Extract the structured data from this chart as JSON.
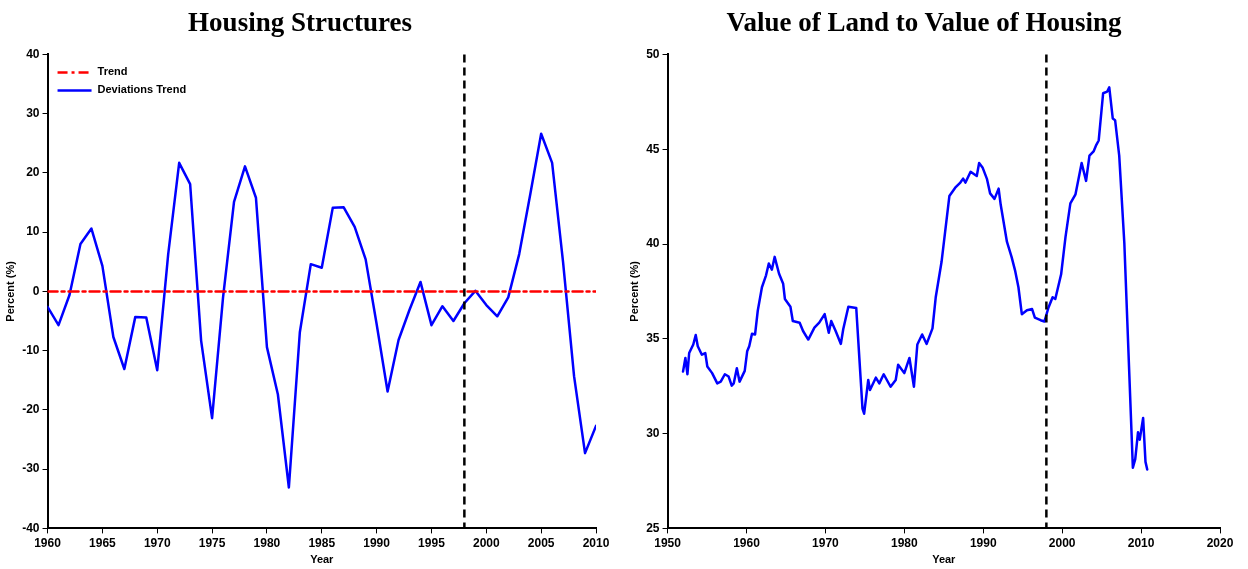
{
  "chart_data": [
    {
      "type": "line",
      "title": "Housing Structures",
      "xlabel": "Year",
      "ylabel": "Percent (%)",
      "xlim": [
        1960,
        2010
      ],
      "xticks": [
        1960,
        1965,
        1970,
        1975,
        1980,
        1985,
        1990,
        1995,
        2000,
        2005,
        2010
      ],
      "ylim": [
        -40,
        40
      ],
      "yticks": [
        -40,
        -30,
        -20,
        -10,
        0,
        10,
        20,
        30,
        40
      ],
      "grid": false,
      "legend": "top left",
      "marker": "none",
      "series": [
        {
          "name": "Trend",
          "color": "#ff0000",
          "line_style": "dashed",
          "x": [
            1960,
            2010
          ],
          "values": [
            0,
            0
          ]
        },
        {
          "name": "Deviations Trend",
          "color": "#0000ff",
          "line_style": "solid",
          "x": [
            1960,
            1961,
            1962,
            1963,
            1964,
            1965,
            1966,
            1967,
            1968,
            1969,
            1970,
            1971,
            1972,
            1973,
            1974,
            1975,
            1976,
            1977,
            1978,
            1979,
            1980,
            1981,
            1982,
            1983,
            1984,
            1985,
            1986,
            1987,
            1988,
            1989,
            1990,
            1991,
            1992,
            1993,
            1994,
            1995,
            1996,
            1997,
            1998,
            1999,
            2000,
            2001,
            2002,
            2003,
            2004,
            2005,
            2006,
            2007,
            2008,
            2009,
            2010
          ],
          "values": [
            -2.6,
            -5.7,
            -0.6,
            8.0,
            10.6,
            4.3,
            -7.7,
            -13.1,
            -4.3,
            -4.4,
            -13.3,
            6.3,
            21.7,
            18.1,
            -8.3,
            -21.4,
            -1,
            15.1,
            21.1,
            15.8,
            -9.4,
            -17.4,
            -33.1,
            -6.9,
            4.6,
            4.0,
            14.1,
            14.2,
            10.9,
            5.4,
            -5.5,
            -16.9,
            -8.2,
            -3.1,
            1.6,
            -5.7,
            -2.5,
            -5.0,
            -2.0,
            0.1,
            -2.3,
            -4.2,
            -1.0,
            6.3,
            16.3,
            26.6,
            21.7,
            4.9,
            -14.3,
            -27.3,
            -22.7
          ]
        }
      ],
      "ref_lines": [
        {
          "axis": "x",
          "value": 1998,
          "color": "#000000",
          "line_style": "dashed"
        }
      ]
    },
    {
      "type": "line",
      "title": "Value of Land to Value of Housing",
      "xlabel": "Year",
      "ylabel": "Percent (%)",
      "xlim": [
        1950,
        2020
      ],
      "xticks": [
        1950,
        1960,
        1970,
        1980,
        1990,
        2000,
        2010,
        2020
      ],
      "ylim": [
        25,
        50
      ],
      "yticks": [
        25,
        30,
        35,
        40,
        45,
        50
      ],
      "grid": false,
      "legend": false,
      "marker": "none",
      "series": [
        {
          "color": "#0000ff",
          "line_style": "solid",
          "x": [
            1951.96,
            1952.26,
            1952.52,
            1952.74,
            1953.26,
            1953.57,
            1953.83,
            1954.35,
            1954.78,
            1955.04,
            1955.65,
            1956.3,
            1956.74,
            1957.26,
            1957.74,
            1958.13,
            1958.39,
            1958.78,
            1959.13,
            1959.78,
            1960.09,
            1960.35,
            1960.7,
            1961.09,
            1961.43,
            1961.96,
            1962.48,
            1962.83,
            1963.22,
            1963.57,
            1964.13,
            1964.65,
            1964.87,
            1965.57,
            1965.87,
            1966.74,
            1967.17,
            1967.83,
            1968.61,
            1969.22,
            1969.91,
            1970.43,
            1970.74,
            1971.3,
            1971.96,
            1972.26,
            1972.91,
            1973.91,
            1974.7,
            1974.91,
            1975.43,
            1975.65,
            1976.39,
            1976.83,
            1977.39,
            1978.26,
            1978.91,
            1979.22,
            1980.0,
            1980.65,
            1981.22,
            1981.65,
            1982.26,
            1982.83,
            1983.57,
            1983.98,
            1984.72,
            1985.71,
            1986.45,
            1987.1,
            1987.45,
            1987.75,
            1988.4,
            1989.18,
            1989.48,
            1989.91,
            1990.48,
            1990.87,
            1991.43,
            1991.95,
            1992.21,
            1993.0,
            1993.59,
            1994.03,
            1994.46,
            1994.89,
            1995.54,
            1996.19,
            1996.54,
            1997.27,
            1997.75,
            1998.27,
            1998.79,
            1999.13,
            1999.87,
            2000.43,
            2001.04,
            2001.69,
            2002.47,
            2003.03,
            2003.46,
            2003.98,
            2004.33,
            2004.63,
            2005.19,
            2005.71,
            2005.97,
            2006.41,
            2006.71,
            2007.23,
            2007.88,
            2008.96,
            2009.26,
            2009.61,
            2009.83,
            2010.26,
            2010.56,
            2010.78
          ],
          "values": [
            33.27,
            33.99,
            33.13,
            34.25,
            34.7,
            35.2,
            34.61,
            34.16,
            34.25,
            33.54,
            33.19,
            32.65,
            32.74,
            33.13,
            33.01,
            32.53,
            32.65,
            33.45,
            32.74,
            33.31,
            34.34,
            34.61,
            35.27,
            35.23,
            36.48,
            37.72,
            38.35,
            38.97,
            38.65,
            39.32,
            38.43,
            37.9,
            37.1,
            36.69,
            35.94,
            35.85,
            35.41,
            34.96,
            35.59,
            35.85,
            36.3,
            35.32,
            35.94,
            35.41,
            34.73,
            35.5,
            36.69,
            36.62,
            31.32,
            31.05,
            32.83,
            32.3,
            32.95,
            32.65,
            33.13,
            32.47,
            32.83,
            33.63,
            33.19,
            33.99,
            32.47,
            34.7,
            35.23,
            34.73,
            35.55,
            37.19,
            39.06,
            42.53,
            42.97,
            43.24,
            43.45,
            43.24,
            43.81,
            43.59,
            44.27,
            44.04,
            43.42,
            42.67,
            42.38,
            42.92,
            42.08,
            40.12,
            39.32,
            38.61,
            37.72,
            36.3,
            36.51,
            36.57,
            36.12,
            35.98,
            35.91,
            36.65,
            37.19,
            37.1,
            38.4,
            40.39,
            42.14,
            42.62,
            44.27,
            43.33,
            44.66,
            44.88,
            45.23,
            45.46,
            47.95,
            48.04,
            48.26,
            46.62,
            46.53,
            44.66,
            40.03,
            28.2,
            28.65,
            30.07,
            29.68,
            30.82,
            28.51,
            28.11
          ]
        }
      ],
      "ref_lines": [
        {
          "axis": "x",
          "value": 1998,
          "color": "#000000",
          "line_style": "dashed"
        }
      ]
    }
  ]
}
